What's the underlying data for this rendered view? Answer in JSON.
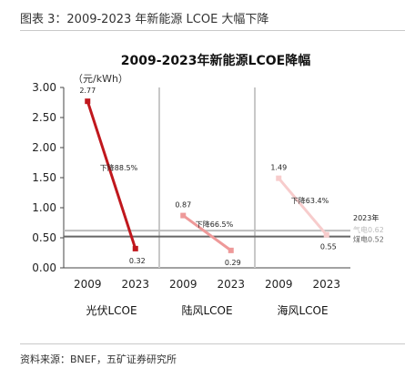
{
  "figure": {
    "caption": "图表 3：2009-2023 年新能源 LCOE 大幅下降",
    "source": "资料来源：BNEF，五矿证券研究所"
  },
  "chart_data": {
    "type": "line",
    "title": "2009-2023年新能源LCOE降幅",
    "ylabel": "（元/kWh）",
    "ylim": [
      0,
      3
    ],
    "yticks": [
      "3.00",
      "2.50",
      "2.00",
      "1.50",
      "1.00",
      "0.50",
      "0.00"
    ],
    "grid": false,
    "panels": [
      {
        "name": "光伏LCOE",
        "color": "#c0171d",
        "x": [
          "2009",
          "2023"
        ],
        "values": [
          2.77,
          0.32
        ],
        "value_labels": [
          "2.77",
          "0.32"
        ],
        "annotation": "下降88.5%"
      },
      {
        "name": "陆风LCOE",
        "color": "#ee9999",
        "x": [
          "2009",
          "2023"
        ],
        "values": [
          0.87,
          0.29
        ],
        "value_labels": [
          "0.87",
          "0.29"
        ],
        "annotation": "下降66.5%"
      },
      {
        "name": "海风LCOE",
        "color": "#f7cccc",
        "x": [
          "2009",
          "2023"
        ],
        "values": [
          1.49,
          0.55
        ],
        "value_labels": [
          "1.49",
          "0.55"
        ],
        "annotation": "下降63.4%"
      }
    ],
    "reference_lines": [
      {
        "label": "2023年",
        "value": 0.62,
        "value_label": "气电0.62",
        "color": "#bbbbbb"
      },
      {
        "label": "煤电0.52",
        "value": 0.52,
        "color": "#666666"
      }
    ]
  }
}
